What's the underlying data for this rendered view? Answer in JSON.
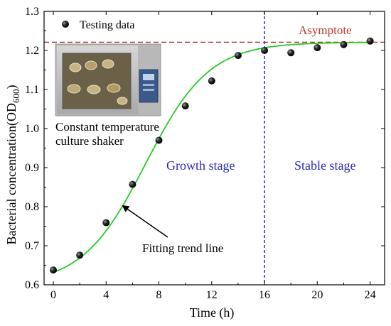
{
  "chart_data": {
    "type": "scatter",
    "xlabel": "Time (h)",
    "ylabel_main": "Bacterial concentration(OD",
    "ylabel_sub": "600",
    "ylabel_end": ")",
    "xlim": [
      -0.7,
      25.1
    ],
    "ylim": [
      0.6,
      1.3
    ],
    "xticks": [
      0,
      4,
      8,
      12,
      16,
      20,
      24
    ],
    "yticks": [
      0.6,
      0.7,
      0.8,
      0.9,
      1.0,
      1.1,
      1.2,
      1.3
    ],
    "xtick_labels": [
      "0",
      "4",
      "8",
      "12",
      "16",
      "20",
      "24"
    ],
    "ytick_labels": [
      "0.6",
      "0.7",
      "0.8",
      "0.9",
      "1.0",
      "1.1",
      "1.2",
      "1.3"
    ],
    "series": [
      {
        "name": "Testing data",
        "x": [
          0,
          2,
          4,
          6,
          8,
          10,
          12,
          14,
          16,
          18,
          20,
          22,
          24
        ],
        "y": [
          0.638,
          0.676,
          0.759,
          0.857,
          0.97,
          1.058,
          1.122,
          1.187,
          1.2,
          1.194,
          1.207,
          1.215,
          1.224
        ]
      }
    ],
    "fit_curve": {
      "label": "Fitting trend line",
      "color": "#22cc22",
      "A1": 0.6,
      "A2": 1.221,
      "x0": 7.0,
      "dx": 2.4
    },
    "asymptote": {
      "label": "Asymptote",
      "y": 1.221,
      "color": "#a52a2a"
    },
    "stage_divider": {
      "x": 16,
      "color": "#1f1fb8"
    },
    "stage_labels": [
      "Growth stage",
      "Stable stage"
    ],
    "inset": {
      "caption_line1": "Constant temperature",
      "caption_line2": "culture shaker"
    },
    "colors": {
      "marker": "#111111",
      "stage_text": "#2a2ab8"
    }
  }
}
